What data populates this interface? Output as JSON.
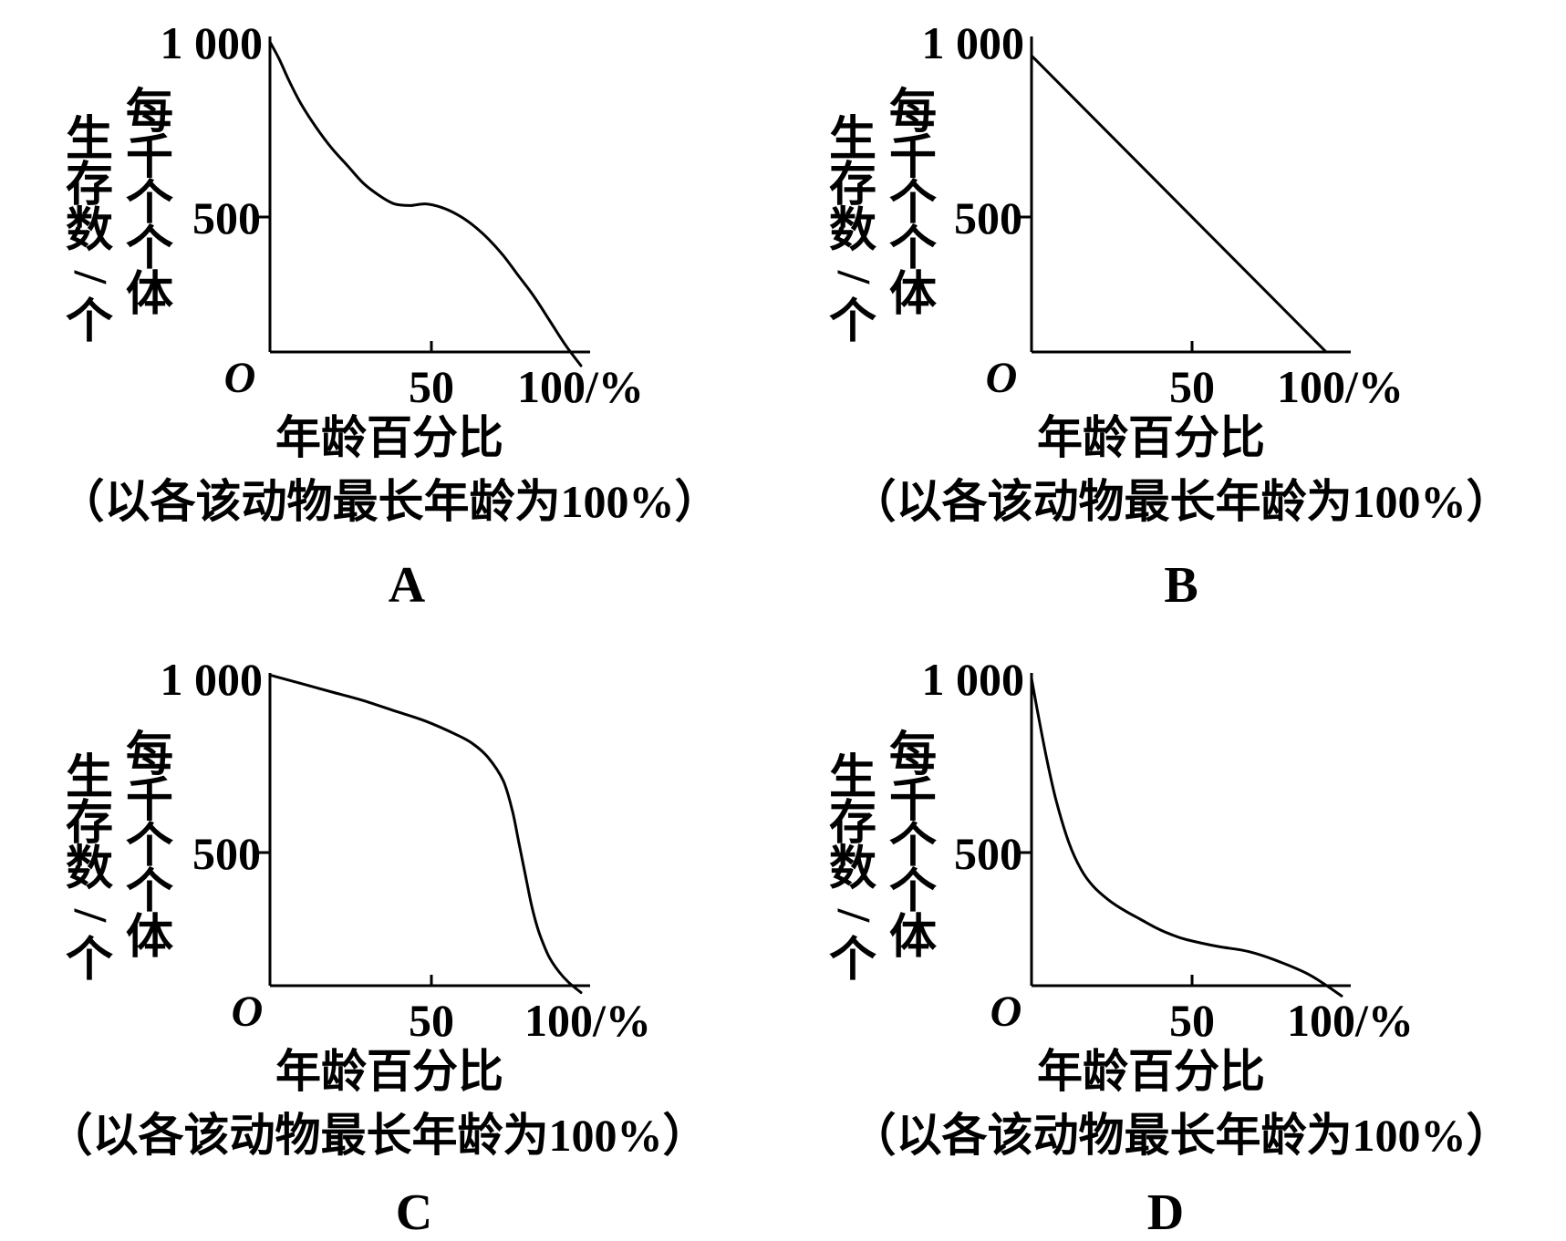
{
  "chart_data": [
    {
      "type": "line",
      "panel_label": "A",
      "ylabel_outer": "生存数/个",
      "ylabel_inner": "每千个个体",
      "xlabel": "年龄百分比",
      "note": "（以各该动物最长年龄为100%）",
      "origin_label": "O",
      "y_ticks": [
        "1 000",
        "500"
      ],
      "x_ticks": [
        "50",
        "100/%"
      ],
      "xlim": [
        0,
        100
      ],
      "ylim": [
        100,
        1000
      ],
      "grid": false,
      "x": [
        0,
        3,
        6,
        10,
        15,
        20,
        25,
        30,
        35,
        40,
        45,
        50,
        55,
        60,
        65,
        70,
        75,
        80,
        85,
        90,
        95,
        100
      ],
      "y": [
        1000,
        950,
        890,
        820,
        750,
        690,
        640,
        590,
        555,
        530,
        525,
        530,
        520,
        500,
        470,
        430,
        380,
        320,
        260,
        190,
        120,
        60
      ]
    },
    {
      "type": "line",
      "panel_label": "B",
      "ylabel_outer": "生存数/个",
      "ylabel_inner": "每千个个体",
      "xlabel": "年龄百分比",
      "note": "（以各该动物最长年龄为100%）",
      "origin_label": "O",
      "y_ticks": [
        "1 000",
        "500"
      ],
      "x_ticks": [
        "50",
        "100/%"
      ],
      "xlim": [
        0,
        100
      ],
      "ylim": [
        100,
        1000
      ],
      "grid": false,
      "x": [
        0,
        95
      ],
      "y": [
        960,
        100
      ]
    },
    {
      "type": "line",
      "panel_label": "C",
      "ylabel_outer": "生存数/个",
      "ylabel_inner": "每千个个体",
      "xlabel": "年龄百分比",
      "note": "（以各该动物最长年龄为100%）",
      "origin_label": "O",
      "y_ticks": [
        "1 000",
        "500"
      ],
      "x_ticks": [
        "50",
        "100/%"
      ],
      "xlim": [
        0,
        100
      ],
      "ylim": [
        100,
        1000
      ],
      "grid": false,
      "x": [
        0,
        10,
        20,
        30,
        40,
        50,
        60,
        65,
        70,
        75,
        78,
        80,
        82,
        84,
        86,
        88,
        90,
        93,
        96,
        100
      ],
      "y": [
        1010,
        985,
        960,
        935,
        905,
        875,
        835,
        810,
        770,
        700,
        610,
        520,
        430,
        340,
        270,
        220,
        180,
        140,
        110,
        80
      ]
    },
    {
      "type": "line",
      "panel_label": "D",
      "ylabel_outer": "生存数/个",
      "ylabel_inner": "每千个个体",
      "xlabel": "年龄百分比",
      "note": "（以各该动物最长年龄为100%）",
      "origin_label": "O",
      "y_ticks": [
        "1 000",
        "500"
      ],
      "x_ticks": [
        "50",
        "100/%"
      ],
      "xlim": [
        0,
        100
      ],
      "ylim": [
        100,
        1000
      ],
      "grid": false,
      "x": [
        0,
        2,
        5,
        8,
        12,
        16,
        20,
        25,
        30,
        35,
        40,
        45,
        50,
        60,
        70,
        80,
        90,
        100
      ],
      "y": [
        1000,
        900,
        760,
        640,
        520,
        440,
        390,
        350,
        320,
        295,
        270,
        250,
        235,
        215,
        200,
        170,
        130,
        70
      ]
    }
  ]
}
